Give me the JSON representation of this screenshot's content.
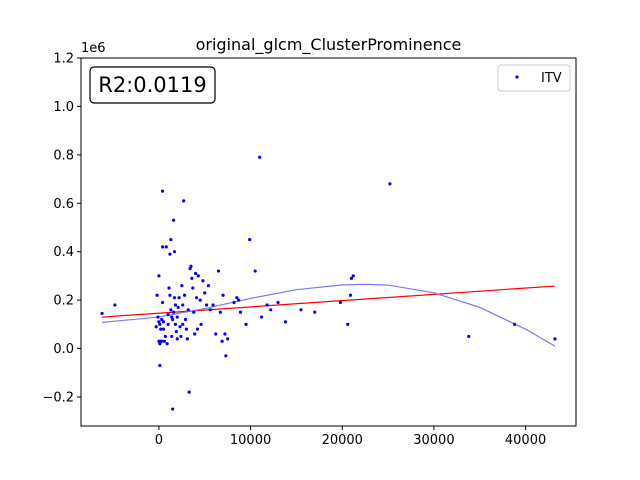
{
  "chart_data": {
    "type": "scatter",
    "title": "original_glcm_ClusterProminence",
    "xlabel": "",
    "ylabel": "",
    "y_offset_label": "1e6",
    "xlim": [
      -8500,
      45500
    ],
    "ylim": [
      -0.32,
      1.2
    ],
    "x_ticks": [
      0,
      10000,
      20000,
      30000,
      40000
    ],
    "x_tick_labels": [
      "0",
      "10000",
      "20000",
      "30000",
      "40000"
    ],
    "y_ticks": [
      -0.2,
      0.0,
      0.2,
      0.4,
      0.6,
      0.8,
      1.0,
      1.2
    ],
    "y_tick_labels": [
      "−0.2",
      "0.0",
      "0.2",
      "0.4",
      "0.6",
      "0.8",
      "1.0",
      "1.2"
    ],
    "grid": false,
    "legend_position": "top-right",
    "annotation": "R2:0.0119",
    "colors": {
      "points": "#0000ff",
      "linear_fit": "#ff0000",
      "poly_fit": "#7b7bf0"
    },
    "series": [
      {
        "name": "ITV",
        "points": [
          [
            -6200,
            0.145
          ],
          [
            -4800,
            0.18
          ],
          [
            -300,
            0.09
          ],
          [
            -200,
            0.22
          ],
          [
            -100,
            0.13
          ],
          [
            0,
            0.3
          ],
          [
            0,
            0.03
          ],
          [
            0,
            0.11
          ],
          [
            100,
            0.1
          ],
          [
            100,
            0.02
          ],
          [
            100,
            -0.07
          ],
          [
            200,
            0.08
          ],
          [
            200,
            0.03
          ],
          [
            300,
            0.12
          ],
          [
            300,
            0.03
          ],
          [
            400,
            0.42
          ],
          [
            400,
            0.65
          ],
          [
            400,
            0.19
          ],
          [
            500,
            0.08
          ],
          [
            500,
            0.11
          ],
          [
            600,
            0.03
          ],
          [
            700,
            0.05
          ],
          [
            800,
            0.42
          ],
          [
            900,
            0.02
          ],
          [
            1000,
            0.14
          ],
          [
            1000,
            0.1
          ],
          [
            1100,
            0.25
          ],
          [
            1200,
            0.39
          ],
          [
            1200,
            0.22
          ],
          [
            1300,
            0.45
          ],
          [
            1300,
            0.16
          ],
          [
            1400,
            0.13
          ],
          [
            1400,
            0.05
          ],
          [
            1500,
            0.12
          ],
          [
            1500,
            -0.25
          ],
          [
            1600,
            0.53
          ],
          [
            1600,
            0.15
          ],
          [
            1700,
            0.4
          ],
          [
            1700,
            0.21
          ],
          [
            1800,
            0.18
          ],
          [
            1800,
            0.1
          ],
          [
            1900,
            0.07
          ],
          [
            2000,
            0.04
          ],
          [
            2000,
            0.13
          ],
          [
            2100,
            0.17
          ],
          [
            2200,
            0.21
          ],
          [
            2300,
            0.09
          ],
          [
            2400,
            0.05
          ],
          [
            2500,
            0.26
          ],
          [
            2600,
            0.18
          ],
          [
            2600,
            0.1
          ],
          [
            2700,
            0.61
          ],
          [
            2800,
            0.22
          ],
          [
            2900,
            0.12
          ],
          [
            3000,
            0.08
          ],
          [
            3100,
            0.04
          ],
          [
            3200,
            0.16
          ],
          [
            3300,
            -0.18
          ],
          [
            3400,
            0.33
          ],
          [
            3500,
            0.34
          ],
          [
            3600,
            0.29
          ],
          [
            3700,
            0.25
          ],
          [
            3800,
            0.15
          ],
          [
            3900,
            0.06
          ],
          [
            4000,
            0.31
          ],
          [
            4100,
            0.21
          ],
          [
            4200,
            0.08
          ],
          [
            4300,
            0.3
          ],
          [
            4500,
            0.2
          ],
          [
            4600,
            0.1
          ],
          [
            4800,
            0.28
          ],
          [
            5000,
            0.23
          ],
          [
            5200,
            0.18
          ],
          [
            5400,
            0.26
          ],
          [
            5600,
            0.16
          ],
          [
            5900,
            0.18
          ],
          [
            6200,
            0.06
          ],
          [
            6500,
            0.32
          ],
          [
            6700,
            0.15
          ],
          [
            6900,
            0.03
          ],
          [
            7000,
            0.22
          ],
          [
            7200,
            0.06
          ],
          [
            7300,
            -0.03
          ],
          [
            7500,
            0.04
          ],
          [
            8200,
            0.19
          ],
          [
            8500,
            0.21
          ],
          [
            8700,
            0.2
          ],
          [
            8900,
            0.15
          ],
          [
            9500,
            0.1
          ],
          [
            9900,
            0.45
          ],
          [
            10500,
            0.32
          ],
          [
            11000,
            0.79
          ],
          [
            11200,
            0.13
          ],
          [
            11800,
            0.18
          ],
          [
            12200,
            0.16
          ],
          [
            13000,
            0.19
          ],
          [
            13800,
            0.11
          ],
          [
            15500,
            0.16
          ],
          [
            17000,
            0.15
          ],
          [
            19800,
            0.19
          ],
          [
            20600,
            0.1
          ],
          [
            20900,
            0.22
          ],
          [
            21000,
            0.29
          ],
          [
            21200,
            0.3
          ],
          [
            25200,
            0.68
          ],
          [
            33800,
            0.05
          ],
          [
            38800,
            0.1
          ],
          [
            43200,
            0.04
          ]
        ]
      }
    ],
    "linear_fit": {
      "x": [
        -6200,
        43200
      ],
      "y": [
        0.13,
        0.258
      ]
    },
    "poly_fit": {
      "x": [
        -6200,
        0,
        5000,
        10000,
        15000,
        20000,
        22500,
        25000,
        30000,
        35000,
        40000,
        43200
      ],
      "y": [
        0.108,
        0.13,
        0.165,
        0.207,
        0.243,
        0.263,
        0.265,
        0.262,
        0.23,
        0.17,
        0.08,
        0.01
      ]
    }
  }
}
